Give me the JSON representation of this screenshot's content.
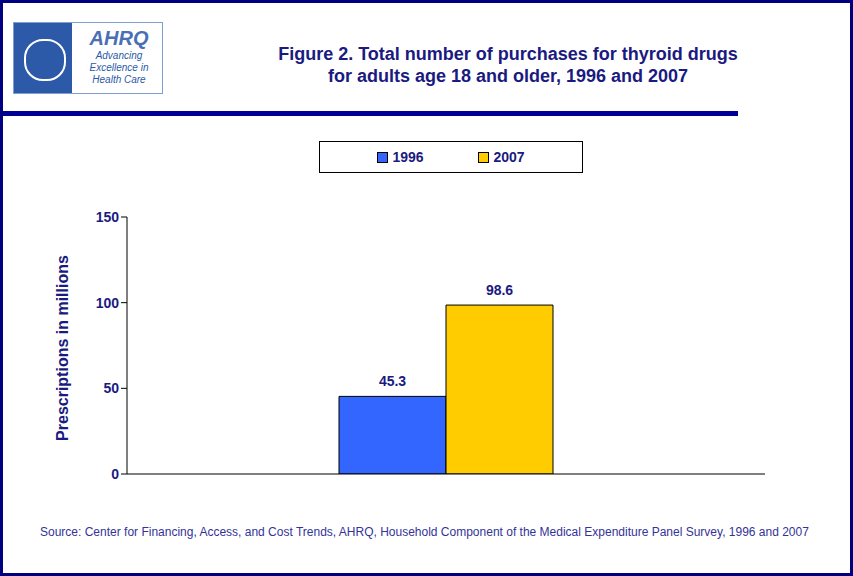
{
  "chart_data": {
    "type": "bar",
    "title": "Figure 2. Total number of purchases for thyroid drugs for adults age 18 and older, 1996 and 2007",
    "y_label": "Prescriptions in millions",
    "categories": [
      null
    ],
    "series": [
      {
        "name": "1996",
        "color": "#3366ff",
        "values": [
          45.3
        ]
      },
      {
        "name": "2007",
        "color": "#ffcc00",
        "values": [
          98.6
        ]
      }
    ],
    "ylim": [
      0,
      150
    ],
    "yticks": [
      0,
      50,
      100,
      150
    ],
    "grid": false,
    "legend": "top",
    "data_labels": true,
    "source": "Source: Center for Financing, Access, and Cost Trends, AHRQ, Household Component of the Medical Expenditure Panel Survey, 1996 and 2007",
    "annotations": [
      "AHRQ",
      "Advancing Excellence in Health Care"
    ]
  }
}
